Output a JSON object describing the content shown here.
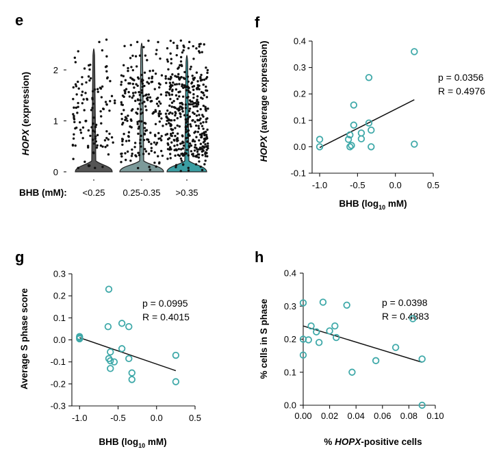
{
  "chart_data": [
    {
      "panel": "e",
      "type": "violin",
      "ylabel": "HOPX (expression)",
      "ylabel_italic": "HOPX",
      "ylabel_rest": " (expression)",
      "xprefix": "BHB (mM):",
      "ylim": [
        0,
        2.7
      ],
      "yticks": [
        0,
        1,
        2
      ],
      "categories": [
        "<0.25",
        "0.25-0.35",
        ">0.35"
      ],
      "violin_colors": [
        "#555555",
        "#7c9a9a",
        "#3b9ea3"
      ],
      "n_points": [
        130,
        220,
        430
      ]
    },
    {
      "panel": "f",
      "type": "scatter",
      "ylabel_italic": "HOPX",
      "ylabel_rest": " (average expression)",
      "xlabel_main": "BHB (log",
      "xlabel_sub": "10",
      "xlabel_end": " mM)",
      "xlim": [
        -1.1,
        0.5
      ],
      "ylim": [
        -0.1,
        0.4
      ],
      "xticks": [
        "-1.0",
        "-0.5",
        "0.0",
        "0.5"
      ],
      "yticks": [
        "0.4",
        "0.3",
        "0.2",
        "0.1",
        "0.0",
        "-0.1"
      ],
      "stat_p": "p = 0.0356",
      "stat_r": "R = 0.4976",
      "fit": [
        [
          -1.0,
          -0.003
        ],
        [
          0.25,
          0.178
        ]
      ],
      "points": [
        [
          -1.0,
          0.028
        ],
        [
          -1.0,
          0.0
        ],
        [
          -0.62,
          0.028
        ],
        [
          -0.6,
          0.045
        ],
        [
          -0.6,
          0.0
        ],
        [
          -0.58,
          0.005
        ],
        [
          -0.55,
          0.158
        ],
        [
          -0.55,
          0.082
        ],
        [
          -0.45,
          0.052
        ],
        [
          -0.45,
          0.03
        ],
        [
          -0.35,
          0.262
        ],
        [
          -0.35,
          0.09
        ],
        [
          -0.32,
          0.063
        ],
        [
          -0.32,
          0.0
        ],
        [
          0.25,
          0.36
        ],
        [
          0.25,
          0.01
        ]
      ]
    },
    {
      "panel": "g",
      "type": "scatter",
      "ylabel": "Average S phase score",
      "xlabel_main": "BHB (log",
      "xlabel_sub": "10",
      "xlabel_end": " mM)",
      "xlim": [
        -1.1,
        0.5
      ],
      "ylim": [
        -0.3,
        0.3
      ],
      "xticks": [
        "-1.0",
        "-0.5",
        "0.0",
        "0.5"
      ],
      "yticks": [
        "0.3",
        "0.2",
        "0.1",
        "0.0",
        "-0.1",
        "-0.2",
        "-0.3"
      ],
      "stat_p": "p = 0.0995",
      "stat_r": "R = 0.4015",
      "fit": [
        [
          -1.0,
          0.01
        ],
        [
          0.25,
          -0.14
        ]
      ],
      "points": [
        [
          -1.0,
          0.015
        ],
        [
          -1.0,
          0.01
        ],
        [
          -1.0,
          0.005
        ],
        [
          -0.62,
          0.23
        ],
        [
          -0.63,
          0.06
        ],
        [
          -0.62,
          -0.085
        ],
        [
          -0.6,
          -0.095
        ],
        [
          -0.6,
          -0.055
        ],
        [
          -0.6,
          -0.13
        ],
        [
          -0.55,
          -0.1
        ],
        [
          -0.45,
          0.075
        ],
        [
          -0.45,
          -0.04
        ],
        [
          -0.36,
          0.06
        ],
        [
          -0.36,
          -0.085
        ],
        [
          -0.32,
          -0.15
        ],
        [
          -0.32,
          -0.18
        ],
        [
          0.25,
          -0.07
        ],
        [
          0.25,
          -0.19
        ]
      ]
    },
    {
      "panel": "h",
      "type": "scatter",
      "ylabel": "% cells in S phase",
      "xlabel_pre": "% ",
      "xlabel_italic": "HOPX",
      "xlabel_post": "-positive cells",
      "xlim": [
        0.0,
        0.1
      ],
      "ylim": [
        0.0,
        0.4
      ],
      "xticks": [
        "0.00",
        "0.02",
        "0.04",
        "0.06",
        "0.08",
        "0.10"
      ],
      "yticks": [
        "0.4",
        "0.3",
        "0.2",
        "0.1",
        "0.0"
      ],
      "stat_p": "p = 0.0398",
      "stat_r": "R = 0.4883",
      "fit": [
        [
          0.0,
          0.24
        ],
        [
          0.09,
          0.13
        ]
      ],
      "points": [
        [
          0.0,
          0.31
        ],
        [
          0.0,
          0.2
        ],
        [
          0.0,
          0.152
        ],
        [
          0.004,
          0.198
        ],
        [
          0.006,
          0.24
        ],
        [
          0.01,
          0.222
        ],
        [
          0.012,
          0.19
        ],
        [
          0.015,
          0.312
        ],
        [
          0.02,
          0.225
        ],
        [
          0.024,
          0.24
        ],
        [
          0.025,
          0.205
        ],
        [
          0.033,
          0.303
        ],
        [
          0.037,
          0.1
        ],
        [
          0.055,
          0.135
        ],
        [
          0.07,
          0.175
        ],
        [
          0.083,
          0.262
        ],
        [
          0.09,
          0.14
        ],
        [
          0.09,
          0.0
        ]
      ]
    }
  ]
}
